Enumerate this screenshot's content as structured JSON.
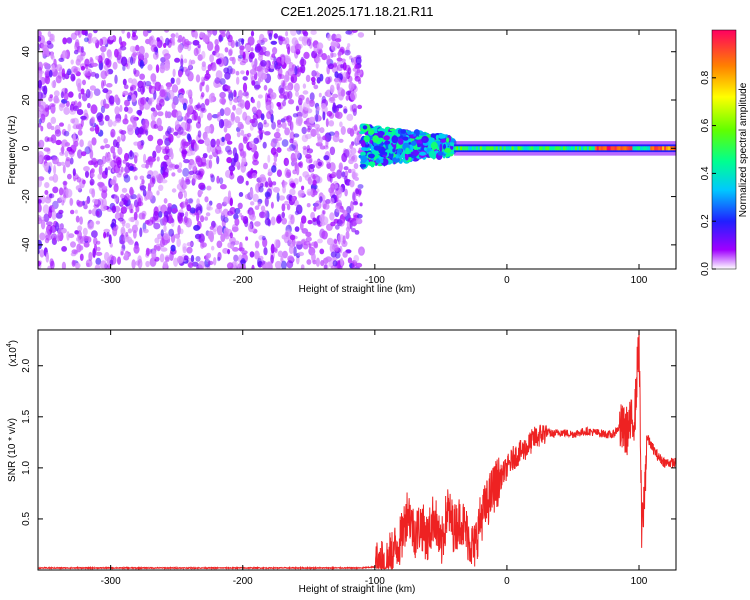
{
  "title": "C2E1.2025.171.18.21.R11",
  "chart_data": [
    {
      "type": "heatmap",
      "xlabel": "Height of straight line (km)",
      "ylabel": "Frequency (Hz)",
      "xlim": [
        -355,
        128
      ],
      "ylim": [
        -50,
        49
      ],
      "xticks": [
        -300,
        -200,
        -100,
        0,
        100
      ],
      "xtick_labels": [
        "-300",
        "-200",
        "-100",
        "0",
        "100"
      ],
      "yticks": [
        -40,
        -20,
        0,
        20,
        40
      ],
      "ytick_labels": [
        "-40",
        "-20",
        "0",
        "20",
        "40"
      ],
      "colorbar": {
        "label": "Normalized spectral amplitude",
        "range": [
          0,
          1
        ],
        "ticks": [
          0.0,
          0.2,
          0.4,
          0.6,
          0.8
        ],
        "tick_labels": [
          "0.0",
          "0.2",
          "0.4",
          "0.6",
          "0.8"
        ],
        "colormap": "rainbow"
      },
      "regions": [
        {
          "x": [
            -355,
            -110
          ],
          "freq": [
            -50,
            49
          ],
          "amplitude": 0.15,
          "pattern": "scattered noise"
        },
        {
          "x": [
            -110,
            -40
          ],
          "freq": [
            -6,
            11
          ],
          "amplitude": 0.45,
          "pattern": "concentrated near 0 Hz"
        },
        {
          "x": [
            -40,
            128
          ],
          "freq": [
            -2,
            2
          ],
          "amplitude": 0.75,
          "pattern": "narrow band at 0 Hz, peak around 70 to 95 km"
        }
      ]
    },
    {
      "type": "line",
      "xlabel": "Height of straight line (km)",
      "ylabel": "SNR (10 * v/v)",
      "y_multiplier_label": "(x10",
      "y_multiplier_exp": "4",
      "xlim": [
        -355,
        128
      ],
      "ylim": [
        0,
        2.35
      ],
      "xticks": [
        -300,
        -200,
        -100,
        0,
        100
      ],
      "xtick_labels": [
        "-300",
        "-200",
        "-100",
        "0",
        "100"
      ],
      "yticks": [
        0.5,
        1.0,
        1.5,
        2.0
      ],
      "ytick_labels": [
        "0.5",
        "1.0",
        "1.5",
        "2.0"
      ],
      "color": "#ee2222",
      "series": [
        {
          "x": [
            -355,
            -300,
            -200,
            -110,
            -100,
            -90,
            -80,
            -75,
            -70,
            -65,
            -60,
            -55,
            -50,
            -45,
            -40,
            -35,
            -30,
            -25,
            -20,
            -15,
            -10,
            -5,
            0,
            5,
            10,
            15,
            20,
            25,
            30,
            35,
            40,
            50,
            60,
            70,
            80,
            85,
            90,
            95,
            97,
            100,
            102,
            104,
            106,
            110,
            115,
            120,
            128
          ],
          "y": [
            0.02,
            0.02,
            0.02,
            0.02,
            0.03,
            0.1,
            0.3,
            0.6,
            0.35,
            0.45,
            0.3,
            0.55,
            0.2,
            0.6,
            0.4,
            0.5,
            0.35,
            0.2,
            0.5,
            0.65,
            0.8,
            0.9,
            1.0,
            1.1,
            1.15,
            1.2,
            1.28,
            1.32,
            1.35,
            1.33,
            1.35,
            1.33,
            1.36,
            1.34,
            1.32,
            1.4,
            1.35,
            1.45,
            1.55,
            2.3,
            0.35,
            0.7,
            1.3,
            1.2,
            1.1,
            1.05,
            1.05
          ]
        }
      ]
    }
  ]
}
